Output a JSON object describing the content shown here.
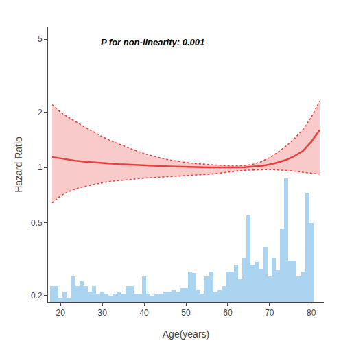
{
  "chart_data": {
    "type": "bar",
    "xlabel": "Age(years)",
    "ylabel": "Hazard Ratio",
    "annotation": "P for non-linearity: 0.001",
    "log": "y",
    "grid": false,
    "xlim": [
      17,
      83
    ],
    "ylim": [
      0.185,
      5.8
    ],
    "xticks": [
      20,
      30,
      40,
      50,
      60,
      70,
      80
    ],
    "yticks": [
      0.2,
      0.5,
      1,
      2,
      5
    ],
    "series": [
      {
        "type": "bar",
        "color": "#aad4ef",
        "x": [
          18,
          19,
          20,
          21,
          22,
          23,
          24,
          25,
          26,
          27,
          28,
          29,
          30,
          31,
          32,
          33,
          34,
          35,
          36,
          37,
          38,
          39,
          40,
          41,
          42,
          43,
          44,
          45,
          46,
          47,
          48,
          49,
          50,
          51,
          52,
          53,
          54,
          55,
          56,
          57,
          58,
          59,
          60,
          61,
          62,
          63,
          64,
          65,
          66,
          67,
          68,
          69,
          70,
          71,
          72,
          73,
          74,
          75,
          76,
          77,
          78,
          79,
          80
        ],
        "values": [
          0.225,
          0.225,
          0.195,
          0.21,
          0.195,
          0.255,
          0.225,
          0.24,
          0.225,
          0.21,
          0.225,
          0.205,
          0.21,
          0.205,
          0.2,
          0.205,
          0.21,
          0.205,
          0.225,
          0.225,
          0.205,
          0.205,
          0.255,
          0.205,
          0.2,
          0.205,
          0.205,
          0.21,
          0.21,
          0.215,
          0.21,
          0.22,
          0.22,
          0.27,
          0.265,
          0.215,
          0.205,
          0.255,
          0.27,
          0.21,
          0.215,
          0.225,
          0.27,
          0.27,
          0.295,
          0.245,
          0.32,
          0.55,
          0.295,
          0.305,
          0.28,
          0.37,
          0.255,
          0.32,
          0.275,
          0.46,
          0.87,
          0.31,
          0.31,
          0.255,
          0.27,
          0.73,
          0.5
        ]
      },
      {
        "type": "area",
        "color": "#f7b8b8",
        "x": [
          18,
          20,
          22,
          24,
          26,
          28,
          30,
          32,
          34,
          36,
          38,
          40,
          42,
          44,
          46,
          48,
          50,
          52,
          54,
          56,
          58,
          60,
          62,
          64,
          66,
          68,
          70,
          72,
          74,
          76,
          78,
          80,
          82
        ],
        "lower": [
          0.64,
          0.7,
          0.74,
          0.77,
          0.79,
          0.81,
          0.825,
          0.84,
          0.85,
          0.86,
          0.87,
          0.875,
          0.88,
          0.885,
          0.89,
          0.895,
          0.9,
          0.905,
          0.91,
          0.92,
          0.93,
          0.945,
          0.955,
          0.965,
          0.97,
          0.975,
          0.975,
          0.97,
          0.965,
          0.955,
          0.94,
          0.93,
          0.92
        ],
        "upper": [
          2.2,
          2.0,
          1.87,
          1.75,
          1.65,
          1.56,
          1.47,
          1.4,
          1.34,
          1.285,
          1.235,
          1.19,
          1.155,
          1.125,
          1.1,
          1.08,
          1.065,
          1.052,
          1.042,
          1.035,
          1.028,
          1.022,
          1.02,
          1.025,
          1.04,
          1.075,
          1.13,
          1.21,
          1.31,
          1.44,
          1.61,
          1.88,
          2.3
        ]
      },
      {
        "type": "line",
        "line_style": "dotted",
        "color": "#e84040",
        "x": [
          18,
          20,
          22,
          24,
          26,
          28,
          30,
          32,
          34,
          36,
          38,
          40,
          42,
          44,
          46,
          48,
          50,
          52,
          54,
          56,
          58,
          60,
          62,
          64,
          66,
          68,
          70,
          72,
          74,
          76,
          78,
          80,
          82
        ],
        "values": [
          2.2,
          2.0,
          1.87,
          1.75,
          1.65,
          1.56,
          1.47,
          1.4,
          1.34,
          1.285,
          1.235,
          1.19,
          1.155,
          1.125,
          1.1,
          1.08,
          1.065,
          1.052,
          1.042,
          1.035,
          1.028,
          1.022,
          1.02,
          1.025,
          1.04,
          1.075,
          1.13,
          1.21,
          1.31,
          1.44,
          1.61,
          1.88,
          2.3
        ]
      },
      {
        "type": "line",
        "line_style": "dotted",
        "color": "#e84040",
        "x": [
          18,
          20,
          22,
          24,
          26,
          28,
          30,
          32,
          34,
          36,
          38,
          40,
          42,
          44,
          46,
          48,
          50,
          52,
          54,
          56,
          58,
          60,
          62,
          64,
          66,
          68,
          70,
          72,
          74,
          76,
          78,
          80,
          82
        ],
        "values": [
          0.64,
          0.7,
          0.74,
          0.77,
          0.79,
          0.81,
          0.825,
          0.84,
          0.85,
          0.86,
          0.87,
          0.875,
          0.88,
          0.885,
          0.89,
          0.895,
          0.9,
          0.905,
          0.91,
          0.92,
          0.93,
          0.945,
          0.955,
          0.965,
          0.97,
          0.975,
          0.975,
          0.97,
          0.965,
          0.955,
          0.94,
          0.93,
          0.92
        ]
      },
      {
        "type": "line",
        "line_style": "solid",
        "color": "#e84040",
        "x": [
          18,
          20,
          22,
          24,
          26,
          28,
          30,
          32,
          34,
          36,
          38,
          40,
          42,
          44,
          46,
          48,
          50,
          52,
          54,
          56,
          58,
          60,
          62,
          64,
          66,
          68,
          70,
          72,
          74,
          76,
          78,
          80,
          82
        ],
        "values": [
          1.14,
          1.12,
          1.1,
          1.085,
          1.075,
          1.065,
          1.055,
          1.048,
          1.042,
          1.037,
          1.031,
          1.027,
          1.022,
          1.018,
          1.014,
          1.01,
          1.007,
          1.004,
          1.002,
          1.001,
          1.0,
          1.0,
          1.001,
          1.004,
          1.01,
          1.02,
          1.038,
          1.065,
          1.1,
          1.155,
          1.23,
          1.38,
          1.6
        ]
      }
    ]
  }
}
